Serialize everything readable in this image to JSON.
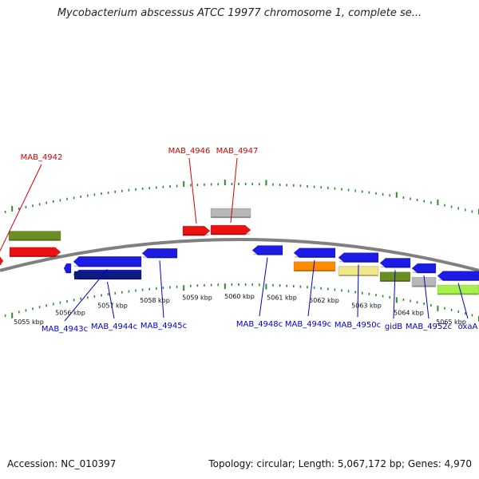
{
  "title": "Mycobacterium abscessus ATCC 19977 chromosome 1, complete se...",
  "footer": {
    "accession": "Accession: NC_010397",
    "summary": "Topology: circular; Length: 5,067,172 bp; Genes: 4,970"
  },
  "colors": {
    "backbone": "#808080",
    "tick": "#2e8b2e",
    "forward_label": "#d40000",
    "reverse_label": "#0000cc",
    "red": "#ee1111",
    "blue": "#1c1ce6",
    "navy": "#0d1a80",
    "olive": "#6b8e23",
    "gray": "#b8b8b8",
    "orange": "#ff8c00",
    "khaki": "#f0e68c",
    "lime": "#a6f04a"
  },
  "scale": {
    "labels": [
      "5055 kbp",
      "5056 kbp",
      "5057 kbp",
      "5058 kbp",
      "5059 kbp",
      "5060 kbp",
      "5061 kbp",
      "5062 kbp",
      "5063 kbp",
      "5064 kbp",
      "5065 kbp"
    ]
  },
  "genes": [
    {
      "label": "MAB_4942",
      "strand": "forward",
      "color": "red"
    },
    {
      "label": "",
      "strand": "forward",
      "color": "olive"
    },
    {
      "label": "",
      "strand": "forward",
      "color": "red"
    },
    {
      "label": "MAB_4946",
      "strand": "forward",
      "color": "red"
    },
    {
      "label": "MAB_4947",
      "strand": "forward",
      "color": "red"
    },
    {
      "label": "",
      "strand": "forward",
      "color": "gray"
    },
    {
      "label": "",
      "strand": "reverse",
      "color": "blue"
    },
    {
      "label": "MAB_4943c",
      "strand": "reverse",
      "color": "blue"
    },
    {
      "label": "MAB_4944c",
      "strand": "reverse",
      "color": "blue"
    },
    {
      "label": "",
      "strand": "reverse",
      "color": "navy"
    },
    {
      "label": "MAB_4945c",
      "strand": "reverse",
      "color": "blue"
    },
    {
      "label": "MAB_4948c",
      "strand": "reverse",
      "color": "blue"
    },
    {
      "label": "MAB_4949c",
      "strand": "reverse",
      "color": "blue"
    },
    {
      "label": "",
      "strand": "reverse",
      "color": "orange"
    },
    {
      "label": "MAB_4950c",
      "strand": "reverse",
      "color": "blue"
    },
    {
      "label": "",
      "strand": "reverse",
      "color": "khaki"
    },
    {
      "label": "gidB",
      "strand": "reverse",
      "color": "blue"
    },
    {
      "label": "",
      "strand": "reverse",
      "color": "olive"
    },
    {
      "label": "MAB_4952c",
      "strand": "reverse",
      "color": "blue"
    },
    {
      "label": "",
      "strand": "reverse",
      "color": "gray"
    },
    {
      "label": "oxaA",
      "strand": "reverse",
      "color": "blue"
    },
    {
      "label": "",
      "strand": "reverse",
      "color": "lime"
    }
  ]
}
